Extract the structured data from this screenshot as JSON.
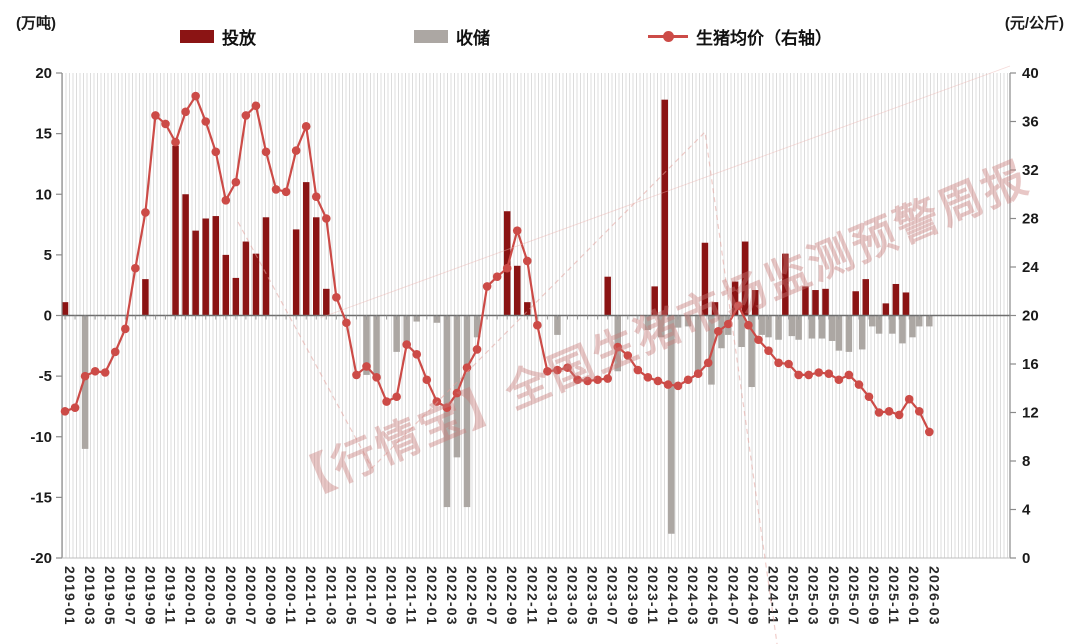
{
  "chart_data": {
    "type": "bar+line",
    "title": "",
    "left_axis": {
      "unit": "(万吨)",
      "min": -20,
      "max": 20,
      "step": 5,
      "ticks": [
        20,
        15,
        10,
        5,
        0,
        -5,
        -10,
        -15,
        -20
      ]
    },
    "right_axis": {
      "unit": "(元/公斤)",
      "min": 0,
      "max": 40,
      "step": 4,
      "ticks": [
        40,
        36,
        32,
        28,
        24,
        20,
        16,
        12,
        8,
        4,
        0
      ]
    },
    "x_axis": {
      "start_month": "2019-01",
      "end_month": "2026-03",
      "label_every_months": 2,
      "labels": [
        "2019-01",
        "2019-03",
        "2019-05",
        "2019-07",
        "2019-09",
        "2019-11",
        "2020-01",
        "2020-03",
        "2020-05",
        "2020-07",
        "2020-09",
        "2020-11",
        "2021-01",
        "2021-03",
        "2021-05",
        "2021-07",
        "2021-09",
        "2021-11",
        "2022-01",
        "2022-03",
        "2022-05",
        "2022-07",
        "2022-09",
        "2022-11",
        "2023-01",
        "2023-03",
        "2023-05",
        "2023-07",
        "2023-09",
        "2023-11",
        "2024-01",
        "2024-03",
        "2024-05",
        "2024-07",
        "2024-09",
        "2024-11",
        "2025-01",
        "2025-03",
        "2025-05",
        "2025-07",
        "2025-09",
        "2025-11",
        "2026-01",
        "2026-03"
      ]
    },
    "legend": [
      {
        "label": "投放",
        "type": "bar",
        "color": "#8B1414"
      },
      {
        "label": "收储",
        "type": "bar",
        "color": "#ACA7A3"
      },
      {
        "label": "生猪均价（右轴）",
        "type": "line",
        "color": "#CC4B47"
      }
    ],
    "series": {
      "release": {
        "2019-01": 1.1,
        "2019-09": 3.0,
        "2019-12": 14.0,
        "2020-01": 10.0,
        "2020-02": 7.0,
        "2020-03": 8.0,
        "2020-04": 8.2,
        "2020-05": 5.0,
        "2020-06": 3.1,
        "2020-07": 6.1,
        "2020-08": 5.1,
        "2020-09": 8.1,
        "2020-12": 7.1,
        "2021-01": 11.0,
        "2021-02": 8.1,
        "2021-03": 2.2,
        "2022-09": 8.6,
        "2022-10": 4.1,
        "2022-11": 1.1,
        "2023-07": 3.2,
        "2023-12": 2.4,
        "2024-01": 17.8,
        "2024-05": 6.0,
        "2024-06": 1.1,
        "2024-08": 2.8,
        "2024-09": 6.1,
        "2024-10": 2.1,
        "2025-01": 5.1,
        "2025-03": 2.4,
        "2025-04": 2.1,
        "2025-05": 2.2,
        "2025-08": 2.0,
        "2025-09": 3.0,
        "2025-11": 1.0,
        "2025-12": 2.6,
        "2026-01": 1.9
      },
      "reserve": {
        "2019-03": -11.0,
        "2021-07": -4.9,
        "2021-08": -5.2,
        "2021-10": -3.0,
        "2021-11": -2.3,
        "2021-12": -0.5,
        "2022-02": -0.6,
        "2022-03": -15.8,
        "2022-04": -11.7,
        "2022-05": -15.8,
        "2022-06": -1.8,
        "2023-02": -1.6,
        "2023-08": -4.6,
        "2023-11": -1.2,
        "2023-12": -1.8,
        "2024-01": -18.0,
        "2024-02": -1.0,
        "2024-03": -0.9,
        "2024-04": -4.6,
        "2024-05": -5.7,
        "2024-06": -2.7,
        "2024-07": -1.6,
        "2024-08": -2.6,
        "2024-09": -5.9,
        "2024-10": -1.6,
        "2024-11": -1.8,
        "2024-12": -2.0,
        "2025-01": -1.7,
        "2025-02": -2.0,
        "2025-03": -1.9,
        "2025-04": -1.9,
        "2025-05": -2.1,
        "2025-06": -2.9,
        "2025-07": -3.0,
        "2025-08": -2.8,
        "2025-09": -0.9,
        "2025-10": -1.5,
        "2025-11": -1.5,
        "2025-12": -2.3,
        "2026-01": -1.8,
        "2026-02": -0.9,
        "2026-03": -0.9
      },
      "price": [
        12.1,
        12.4,
        15.0,
        15.4,
        15.3,
        17.0,
        18.9,
        23.9,
        28.5,
        36.5,
        35.8,
        34.3,
        36.8,
        38.1,
        36.0,
        33.5,
        29.5,
        31.0,
        36.5,
        37.3,
        33.5,
        30.4,
        30.2,
        33.6,
        35.6,
        29.8,
        28.0,
        21.5,
        19.4,
        15.1,
        15.8,
        14.9,
        12.9,
        13.3,
        17.6,
        16.8,
        14.7,
        12.9,
        12.4,
        13.6,
        15.7,
        17.2,
        22.4,
        23.2,
        23.9,
        27.0,
        24.5,
        19.2,
        15.4,
        15.5,
        15.7,
        14.7,
        14.6,
        14.7,
        14.8,
        17.4,
        16.7,
        15.5,
        14.9,
        14.6,
        14.3,
        14.2,
        14.7,
        15.2,
        16.1,
        18.7,
        19.3,
        20.8,
        19.2,
        18.0,
        17.1,
        16.1,
        16.0,
        15.1,
        15.1,
        15.3,
        15.2,
        14.7,
        15.1,
        14.3,
        13.3,
        12.0,
        12.1,
        11.8,
        13.1,
        12.1,
        10.4
      ]
    },
    "watermark": "【行情宝】全国生猪市场监测预警周报",
    "colors": {
      "release_bar": "#8B1414",
      "reserve_bar": "#ACA7A3",
      "price_line": "#CC4B47",
      "grid_stripe": "#DCDCDC",
      "axis": "#8A8A8A",
      "zero_line": "#6E6E6E",
      "tick_text": "#1A1A1A",
      "watermark": "rgba(200,122,118,0.42)"
    }
  }
}
